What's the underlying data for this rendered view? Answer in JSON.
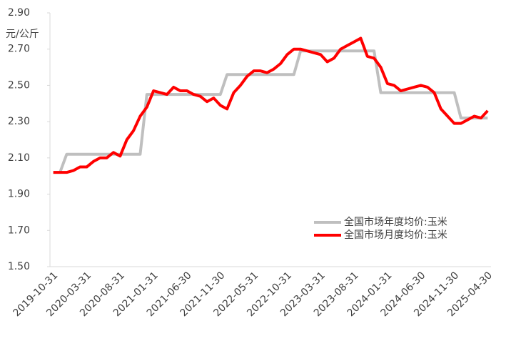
{
  "chart_data": {
    "type": "line",
    "y_label": "元/公斤",
    "categories": [
      "2019-10-31",
      null,
      null,
      null,
      null,
      "2020-03-31",
      null,
      null,
      null,
      null,
      "2020-08-31",
      null,
      null,
      null,
      null,
      "2021-01-31",
      null,
      null,
      null,
      null,
      "2021-06-30",
      null,
      null,
      null,
      null,
      "2021-11-30",
      null,
      null,
      null,
      null,
      "2022-05-31",
      null,
      null,
      null,
      null,
      "2022-10-31",
      null,
      null,
      null,
      null,
      "2023-03-31",
      null,
      null,
      null,
      null,
      "2023-08-31",
      null,
      null,
      null,
      null,
      "2024-01-31",
      null,
      null,
      null,
      null,
      "2024-06-30",
      null,
      null,
      null,
      null,
      "2024-11-30",
      null,
      null,
      null,
      null,
      "2025-04-30"
    ],
    "series": [
      {
        "name": "全国市场年度均价:玉米",
        "color": "#bfbfbf",
        "values": [
          2.02,
          2.02,
          2.12,
          2.12,
          2.12,
          2.12,
          2.12,
          2.12,
          2.12,
          2.12,
          2.12,
          2.12,
          2.12,
          2.12,
          2.45,
          2.45,
          2.45,
          2.45,
          2.45,
          2.45,
          2.45,
          2.45,
          2.45,
          2.45,
          2.45,
          2.45,
          2.56,
          2.56,
          2.56,
          2.56,
          2.56,
          2.56,
          2.56,
          2.56,
          2.56,
          2.56,
          2.56,
          2.69,
          2.69,
          2.69,
          2.69,
          2.69,
          2.69,
          2.69,
          2.69,
          2.69,
          2.69,
          2.69,
          2.69,
          2.46,
          2.46,
          2.46,
          2.46,
          2.46,
          2.46,
          2.46,
          2.46,
          2.46,
          2.46,
          2.46,
          2.46,
          2.32,
          2.32,
          2.32,
          2.32,
          2.32
        ]
      },
      {
        "name": "全国市场月度均价:玉米",
        "color": "#ff0000",
        "values": [
          2.02,
          2.02,
          2.02,
          2.03,
          2.05,
          2.05,
          2.08,
          2.1,
          2.1,
          2.13,
          2.11,
          2.2,
          2.25,
          2.33,
          2.38,
          2.47,
          2.46,
          2.45,
          2.49,
          2.47,
          2.47,
          2.45,
          2.44,
          2.41,
          2.43,
          2.39,
          2.37,
          2.46,
          2.5,
          2.55,
          2.58,
          2.58,
          2.57,
          2.59,
          2.62,
          2.67,
          2.7,
          2.7,
          2.69,
          2.68,
          2.67,
          2.63,
          2.65,
          2.7,
          2.72,
          2.74,
          2.76,
          2.66,
          2.65,
          2.6,
          2.51,
          2.5,
          2.47,
          2.48,
          2.49,
          2.5,
          2.49,
          2.46,
          2.37,
          2.33,
          2.29,
          2.29,
          2.31,
          2.33,
          2.32,
          2.36
        ]
      }
    ],
    "ylim": [
      1.5,
      2.9
    ],
    "yticks": [
      {
        "value": 1.5,
        "label": "1.50"
      },
      {
        "value": 1.7,
        "label": "1.70"
      },
      {
        "value": 1.9,
        "label": "1.90"
      },
      {
        "value": 2.1,
        "label": "2.10"
      },
      {
        "value": 2.3,
        "label": "2.30"
      },
      {
        "value": 2.5,
        "label": "2.50"
      },
      {
        "value": 2.7,
        "label": "2.70"
      },
      {
        "value": 2.9,
        "label": "2.90"
      }
    ],
    "grid": false,
    "legend": "lower-right"
  }
}
